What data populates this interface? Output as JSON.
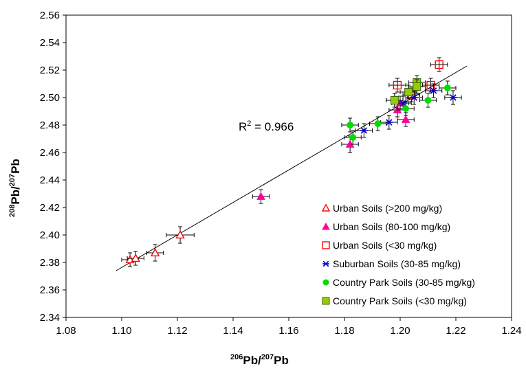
{
  "chart_data": {
    "type": "scatter",
    "xlabel": {
      "sup1": "206",
      "base1": "Pb/",
      "sup2": "207",
      "base2": "Pb"
    },
    "ylabel": {
      "sup1": "208",
      "base1": "Pb/",
      "sup2": "207",
      "base2": "Pb"
    },
    "xlim": [
      1.08,
      1.24
    ],
    "ylim": [
      2.34,
      2.56
    ],
    "xticks": [
      "1.08",
      "1.10",
      "1.12",
      "1.14",
      "1.16",
      "1.18",
      "1.20",
      "1.22",
      "1.24"
    ],
    "yticks": [
      "2.34",
      "2.36",
      "2.38",
      "2.40",
      "2.42",
      "2.44",
      "2.46",
      "2.48",
      "2.50",
      "2.52",
      "2.54",
      "2.56"
    ],
    "grid": false,
    "legend_position": "bottom-right",
    "annotation": {
      "base": "R",
      "sup": "2",
      "rest": " = 0.966",
      "x": 1.168,
      "y": 2.48
    },
    "trendline": {
      "x": [
        1.098,
        1.224
      ],
      "y": [
        2.374,
        2.523
      ],
      "color": "#000000"
    },
    "series": [
      {
        "name": "Urban Soils (>200 mg/kg)",
        "marker": "triangle-open",
        "color": "#ff0000",
        "points": [
          {
            "x": 1.103,
            "y": 2.382,
            "xerr": 0.003,
            "yerr": 0.005
          },
          {
            "x": 1.105,
            "y": 2.383,
            "xerr": 0.003,
            "yerr": 0.005
          },
          {
            "x": 1.112,
            "y": 2.387,
            "xerr": 0.003,
            "yerr": 0.006
          },
          {
            "x": 1.121,
            "y": 2.4,
            "xerr": 0.005,
            "yerr": 0.006
          }
        ]
      },
      {
        "name": "Urban Soils (80-100 mg/kg)",
        "marker": "triangle-filled",
        "color": "#ff0099",
        "points": [
          {
            "x": 1.15,
            "y": 2.428,
            "xerr": 0.003,
            "yerr": 0.005
          },
          {
            "x": 1.182,
            "y": 2.466,
            "xerr": 0.003,
            "yerr": 0.006
          },
          {
            "x": 1.199,
            "y": 2.491,
            "xerr": 0.003,
            "yerr": 0.005
          },
          {
            "x": 1.202,
            "y": 2.484,
            "xerr": 0.003,
            "yerr": 0.005
          },
          {
            "x": 1.2,
            "y": 2.496,
            "xerr": 0.003,
            "yerr": 0.005
          }
        ]
      },
      {
        "name": "Urban Soils (<30 mg/kg)",
        "marker": "square-open",
        "color": "#ff0000",
        "points": [
          {
            "x": 1.199,
            "y": 2.509,
            "xerr": 0.003,
            "yerr": 0.005
          },
          {
            "x": 1.214,
            "y": 2.524,
            "xerr": 0.003,
            "yerr": 0.005
          },
          {
            "x": 1.211,
            "y": 2.509,
            "xerr": 0.003,
            "yerr": 0.005
          },
          {
            "x": 1.204,
            "y": 2.502,
            "xerr": 0.003,
            "yerr": 0.005
          }
        ]
      },
      {
        "name": "Suburban Soils (30-85 mg/kg)",
        "marker": "asterisk",
        "color": "#0000cc",
        "points": [
          {
            "x": 1.187,
            "y": 2.476,
            "xerr": 0.003,
            "yerr": 0.005
          },
          {
            "x": 1.196,
            "y": 2.482,
            "xerr": 0.003,
            "yerr": 0.005
          },
          {
            "x": 1.219,
            "y": 2.5,
            "xerr": 0.003,
            "yerr": 0.005
          },
          {
            "x": 1.212,
            "y": 2.505,
            "xerr": 0.003,
            "yerr": 0.005
          },
          {
            "x": 1.205,
            "y": 2.5,
            "xerr": 0.003,
            "yerr": 0.005
          },
          {
            "x": 1.201,
            "y": 2.496,
            "xerr": 0.003,
            "yerr": 0.005
          }
        ]
      },
      {
        "name": "Country Park Soils (30-85 mg/kg)",
        "marker": "circle",
        "color": "#00dd00",
        "points": [
          {
            "x": 1.182,
            "y": 2.48,
            "xerr": 0.003,
            "yerr": 0.005
          },
          {
            "x": 1.183,
            "y": 2.471,
            "xerr": 0.003,
            "yerr": 0.005
          },
          {
            "x": 1.192,
            "y": 2.481,
            "xerr": 0.003,
            "yerr": 0.005
          },
          {
            "x": 1.202,
            "y": 2.492,
            "xerr": 0.003,
            "yerr": 0.005
          },
          {
            "x": 1.21,
            "y": 2.498,
            "xerr": 0.003,
            "yerr": 0.005
          },
          {
            "x": 1.217,
            "y": 2.507,
            "xerr": 0.003,
            "yerr": 0.005
          },
          {
            "x": 1.198,
            "y": 2.498,
            "xerr": 0.003,
            "yerr": 0.005
          }
        ]
      },
      {
        "name": "Country Park Soils (<30 mg/kg)",
        "marker": "square-filled",
        "color": "#99cc00",
        "points": [
          {
            "x": 1.206,
            "y": 2.511,
            "xerr": 0.003,
            "yerr": 0.005
          },
          {
            "x": 1.203,
            "y": 2.504,
            "xerr": 0.003,
            "yerr": 0.005
          },
          {
            "x": 1.198,
            "y": 2.498,
            "xerr": 0.003,
            "yerr": 0.005
          },
          {
            "x": 1.206,
            "y": 2.508,
            "xerr": 0.003,
            "yerr": 0.005
          }
        ]
      }
    ]
  }
}
